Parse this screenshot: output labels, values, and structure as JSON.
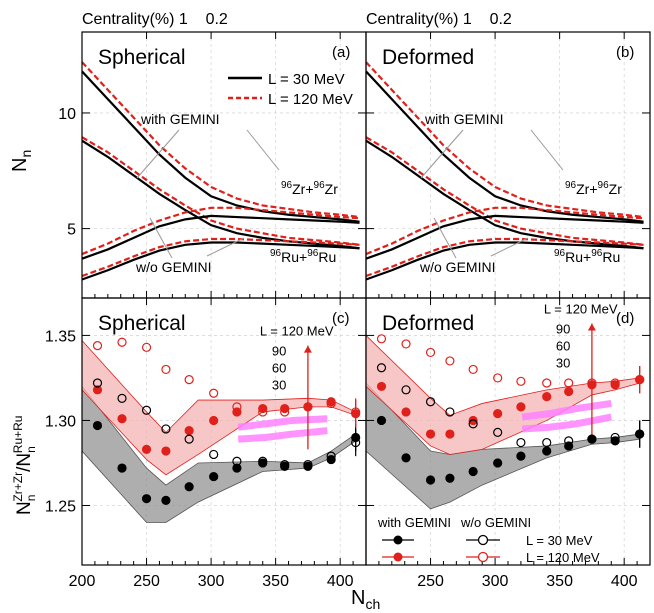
{
  "top_labels": {
    "left": "Centrality(%) 1    0.2",
    "right": "Centrality(%) 1    0.2"
  },
  "legend_top": {
    "solid_label": "L = 30 MeV",
    "dashed_label": "L = 120 MeV"
  },
  "legend_bottom": {
    "header_with": "with GEMINI",
    "header_wo": "w/o GEMINI",
    "row1": "L = 30 MeV",
    "row2": "L = 120 MeV"
  },
  "colors": {
    "black": "#000000",
    "red": "#e0201b",
    "red_band": "#f4b4b4",
    "grey_band": "#8c8c8c",
    "pink": "#ff80ff"
  },
  "chart_data": [
    {
      "type": "line",
      "panel": "a",
      "panel_label": "(a)",
      "title": "Spherical",
      "ylabel": "N_n",
      "xlim": [
        200,
        420
      ],
      "ylim": [
        2.0,
        13.5
      ],
      "yticks": [
        5,
        10
      ],
      "annotations": {
        "with": "with GEMINI",
        "wo": "w/o GEMINI",
        "zr": "96Zr+96Zr",
        "ru": "96Ru+96Ru"
      },
      "x": [
        200,
        220,
        240,
        260,
        280,
        300,
        320,
        340,
        360,
        380,
        400,
        415
      ],
      "series": [
        {
          "name": "L = 30 MeV",
          "system": "Zr",
          "gemini": "with",
          "values": [
            11.8,
            10.6,
            9.4,
            8.2,
            7.2,
            6.4,
            6.0,
            5.75,
            5.6,
            5.5,
            5.4,
            5.3
          ]
        },
        {
          "name": "L = 120 MeV",
          "system": "Zr",
          "gemini": "with",
          "values": [
            12.2,
            11.0,
            9.8,
            8.6,
            7.6,
            6.8,
            6.3,
            6.0,
            5.85,
            5.7,
            5.6,
            5.5
          ]
        },
        {
          "name": "L = 30 MeV",
          "system": "Ru",
          "gemini": "with",
          "values": [
            8.8,
            8.1,
            7.3,
            6.5,
            5.8,
            5.15,
            4.8,
            4.6,
            4.45,
            4.35,
            4.25,
            4.15
          ]
        },
        {
          "name": "L = 120 MeV",
          "system": "Ru",
          "gemini": "with",
          "values": [
            8.95,
            8.3,
            7.5,
            6.7,
            6.0,
            5.35,
            5.0,
            4.8,
            4.6,
            4.5,
            4.4,
            4.3
          ]
        },
        {
          "name": "L = 30 MeV",
          "system": "Zr",
          "gemini": "w/o",
          "values": [
            3.7,
            4.1,
            4.6,
            5.1,
            5.4,
            5.55,
            5.5,
            5.45,
            5.4,
            5.35,
            5.3,
            5.25
          ]
        },
        {
          "name": "L = 120 MeV",
          "system": "Zr",
          "gemini": "w/o",
          "values": [
            3.9,
            4.35,
            4.9,
            5.35,
            5.7,
            5.9,
            5.9,
            5.8,
            5.7,
            5.6,
            5.5,
            5.45
          ]
        },
        {
          "name": "L = 30 MeV",
          "system": "Ru",
          "gemini": "w/o",
          "values": [
            2.8,
            3.2,
            3.65,
            4.05,
            4.3,
            4.4,
            4.4,
            4.35,
            4.3,
            4.25,
            4.2,
            4.15
          ]
        },
        {
          "name": "L = 120 MeV",
          "system": "Ru",
          "gemini": "w/o",
          "values": [
            2.95,
            3.35,
            3.8,
            4.2,
            4.45,
            4.55,
            4.55,
            4.5,
            4.45,
            4.4,
            4.35,
            4.3
          ]
        }
      ]
    },
    {
      "type": "line",
      "panel": "b",
      "panel_label": "(b)",
      "title": "Deformed",
      "xlim": [
        200,
        420
      ],
      "ylim": [
        2.0,
        13.5
      ],
      "yticks": [
        5,
        10
      ],
      "annotations": {
        "with": "with GEMINI",
        "wo": "w/o GEMINI",
        "zr": "96Zr+96Zr",
        "ru": "96Ru+96Ru"
      },
      "x": [
        200,
        220,
        240,
        260,
        280,
        300,
        320,
        340,
        360,
        380,
        400,
        415
      ],
      "series": [
        {
          "name": "L = 30 MeV",
          "system": "Zr",
          "gemini": "with",
          "values": [
            11.8,
            10.6,
            9.4,
            8.2,
            7.2,
            6.4,
            6.0,
            5.75,
            5.6,
            5.5,
            5.4,
            5.3
          ]
        },
        {
          "name": "L = 120 MeV",
          "system": "Zr",
          "gemini": "with",
          "values": [
            12.2,
            11.0,
            9.8,
            8.6,
            7.6,
            6.8,
            6.3,
            6.0,
            5.85,
            5.7,
            5.6,
            5.5
          ]
        },
        {
          "name": "L = 30 MeV",
          "system": "Ru",
          "gemini": "with",
          "values": [
            8.8,
            8.1,
            7.3,
            6.5,
            5.8,
            5.15,
            4.8,
            4.6,
            4.45,
            4.35,
            4.25,
            4.15
          ]
        },
        {
          "name": "L = 120 MeV",
          "system": "Ru",
          "gemini": "with",
          "values": [
            8.95,
            8.3,
            7.5,
            6.7,
            6.0,
            5.35,
            5.0,
            4.8,
            4.6,
            4.5,
            4.4,
            4.3
          ]
        },
        {
          "name": "L = 30 MeV",
          "system": "Zr",
          "gemini": "w/o",
          "values": [
            3.7,
            4.1,
            4.6,
            5.1,
            5.4,
            5.55,
            5.5,
            5.45,
            5.4,
            5.35,
            5.3,
            5.25
          ]
        },
        {
          "name": "L = 120 MeV",
          "system": "Zr",
          "gemini": "w/o",
          "values": [
            3.9,
            4.35,
            4.9,
            5.35,
            5.7,
            5.9,
            5.9,
            5.8,
            5.7,
            5.6,
            5.5,
            5.45
          ]
        },
        {
          "name": "L = 30 MeV",
          "system": "Ru",
          "gemini": "w/o",
          "values": [
            2.8,
            3.2,
            3.65,
            4.05,
            4.3,
            4.4,
            4.4,
            4.35,
            4.3,
            4.25,
            4.2,
            4.15
          ]
        },
        {
          "name": "L = 120 MeV",
          "system": "Ru",
          "gemini": "w/o",
          "values": [
            2.95,
            3.35,
            3.8,
            4.2,
            4.45,
            4.55,
            4.55,
            4.5,
            4.45,
            4.4,
            4.35,
            4.3
          ]
        }
      ]
    },
    {
      "type": "scatter",
      "panel": "c",
      "panel_label": "(c)",
      "title": "Spherical",
      "ylabel": "N_n^{Zr+Zr}/N_n^{Ru+Ru}",
      "xlabel": "N_ch",
      "xlim": [
        200,
        420
      ],
      "ylim": [
        1.215,
        1.372
      ],
      "yticks": [
        1.25,
        1.3,
        1.35
      ],
      "xticks": [
        200,
        250,
        300,
        350,
        400
      ],
      "L_labels": [
        "L = 120 MeV",
        "90",
        "60",
        "30"
      ],
      "red_band": {
        "x": [
          200,
          250,
          265,
          290,
          340,
          375,
          393,
          412
        ],
        "upper": [
          1.347,
          1.305,
          1.293,
          1.312,
          1.312,
          1.313,
          1.312,
          1.305
        ],
        "lower": [
          1.318,
          1.277,
          1.268,
          1.28,
          1.305,
          1.308,
          1.308,
          1.303
        ]
      },
      "grey_band": {
        "x": [
          200,
          250,
          265,
          290,
          340,
          375,
          393,
          412
        ],
        "upper": [
          1.32,
          1.272,
          1.262,
          1.275,
          1.276,
          1.275,
          1.282,
          1.292
        ],
        "lower": [
          1.282,
          1.24,
          1.24,
          1.252,
          1.27,
          1.272,
          1.278,
          1.288
        ]
      },
      "pink_bands": [
        {
          "x": [
            321,
            342,
            363,
            390
          ],
          "y": [
            1.289,
            1.29,
            1.292,
            1.294
          ]
        },
        {
          "x": [
            321,
            342,
            363,
            390
          ],
          "y": [
            1.296,
            1.298,
            1.3,
            1.301
          ]
        }
      ],
      "red_line": {
        "x": [
          375,
          375
        ],
        "y": [
          1.283,
          1.344
        ]
      },
      "series": [
        {
          "name": "L = 30 MeV",
          "gemini": "with",
          "x": [
            212,
            231,
            250,
            265,
            283,
            302,
            320,
            340,
            357,
            375,
            393,
            412
          ],
          "values": [
            1.297,
            1.272,
            1.254,
            1.253,
            1.261,
            1.267,
            1.272,
            1.275,
            1.273,
            1.273,
            1.277,
            1.29
          ]
        },
        {
          "name": "L = 120 MeV",
          "gemini": "with",
          "x": [
            212,
            231,
            250,
            265,
            283,
            302,
            320,
            340,
            357,
            375,
            393,
            412
          ],
          "values": [
            1.318,
            1.301,
            1.283,
            1.282,
            1.294,
            1.3,
            1.305,
            1.307,
            1.307,
            1.308,
            1.311,
            1.304
          ]
        },
        {
          "name": "L = 30 MeV",
          "gemini": "w/o",
          "x": [
            212,
            231,
            250,
            265,
            283,
            302,
            320,
            340,
            357,
            375,
            393,
            412
          ],
          "values": [
            1.322,
            1.313,
            1.306,
            1.295,
            1.289,
            1.28,
            1.276,
            1.276,
            1.274,
            1.274,
            1.279,
            1.287
          ]
        },
        {
          "name": "L = 120 MeV",
          "gemini": "w/o",
          "x": [
            212,
            231,
            250,
            265,
            283,
            302,
            320,
            340,
            357,
            375,
            393,
            412
          ],
          "values": [
            1.344,
            1.346,
            1.343,
            1.33,
            1.324,
            1.316,
            1.308,
            1.305,
            1.305,
            1.308,
            1.31,
            1.305
          ]
        }
      ]
    },
    {
      "type": "scatter",
      "panel": "d",
      "panel_label": "(d)",
      "title": "Deformed",
      "xlim": [
        200,
        420
      ],
      "ylim": [
        1.215,
        1.372
      ],
      "yticks": [
        1.25,
        1.3,
        1.35
      ],
      "xticks": [
        250,
        300,
        350,
        400
      ],
      "L_labels": [
        "L = 120 MeV",
        "90",
        "60",
        "30"
      ],
      "red_band": {
        "x": [
          200,
          250,
          265,
          290,
          340,
          375,
          393,
          412
        ],
        "upper": [
          1.35,
          1.313,
          1.303,
          1.31,
          1.318,
          1.322,
          1.323,
          1.325
        ],
        "lower": [
          1.32,
          1.285,
          1.28,
          1.283,
          1.3,
          1.315,
          1.318,
          1.322
        ]
      },
      "grey_band": {
        "x": [
          200,
          250,
          265,
          290,
          340,
          375,
          393,
          412
        ],
        "upper": [
          1.322,
          1.282,
          1.28,
          1.283,
          1.285,
          1.289,
          1.29,
          1.292
        ],
        "lower": [
          1.282,
          1.248,
          1.252,
          1.262,
          1.278,
          1.286,
          1.287,
          1.289
        ]
      },
      "pink_bands": [
        {
          "x": [
            321,
            342,
            363,
            390
          ],
          "y": [
            1.295,
            1.296,
            1.298,
            1.302
          ]
        },
        {
          "x": [
            321,
            342,
            363,
            390
          ],
          "y": [
            1.302,
            1.304,
            1.307,
            1.31
          ]
        }
      ],
      "red_line": {
        "x": [
          375,
          375
        ],
        "y": [
          1.288,
          1.357
        ]
      },
      "series": [
        {
          "name": "L = 30 MeV",
          "gemini": "with",
          "x": [
            212,
            231,
            250,
            265,
            283,
            302,
            320,
            340,
            357,
            375,
            393,
            412
          ],
          "values": [
            1.3,
            1.278,
            1.265,
            1.266,
            1.27,
            1.275,
            1.279,
            1.282,
            1.285,
            1.289,
            1.288,
            1.292
          ]
        },
        {
          "name": "L = 120 MeV",
          "gemini": "with",
          "x": [
            212,
            231,
            250,
            265,
            283,
            302,
            320,
            340,
            357,
            375,
            393,
            412
          ],
          "values": [
            1.32,
            1.305,
            1.292,
            1.292,
            1.3,
            1.304,
            1.308,
            1.314,
            1.317,
            1.321,
            1.321,
            1.324
          ]
        },
        {
          "name": "L = 30 MeV",
          "gemini": "w/o",
          "x": [
            212,
            231,
            250,
            265,
            283,
            302,
            320,
            340,
            357,
            375,
            393,
            412
          ],
          "values": [
            1.331,
            1.318,
            1.311,
            1.305,
            1.298,
            1.293,
            1.287,
            1.287,
            1.288,
            1.289,
            1.29,
            1.292
          ]
        },
        {
          "name": "L = 120 MeV",
          "gemini": "w/o",
          "x": [
            212,
            231,
            250,
            265,
            283,
            302,
            320,
            340,
            357,
            375,
            393,
            412
          ],
          "values": [
            1.348,
            1.345,
            1.34,
            1.335,
            1.33,
            1.325,
            1.323,
            1.322,
            1.322,
            1.322,
            1.322,
            1.324
          ]
        }
      ]
    }
  ]
}
